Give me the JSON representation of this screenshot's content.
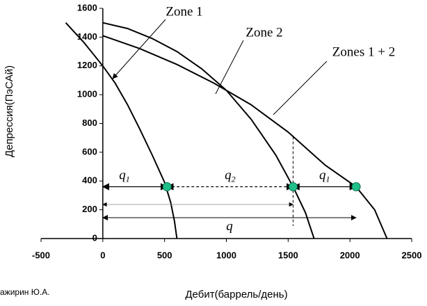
{
  "chart_data": {
    "type": "line",
    "y_label": "Депрессия(ПэСАй)",
    "x_label": "Дебит(баррель/день)",
    "credit": "ажирин Ю.А.",
    "xlim": [
      -500,
      2500
    ],
    "xticks": [
      -500,
      0,
      500,
      1000,
      1500,
      2000,
      2500
    ],
    "ylim": [
      0,
      1600
    ],
    "yticks": [
      0,
      200,
      400,
      600,
      800,
      1000,
      1200,
      1400,
      1600
    ],
    "series": [
      {
        "name": "Zone 1",
        "color": "#000000",
        "x": [
          -300,
          -150,
          0,
          100,
          200,
          300,
          400,
          500,
          550,
          580,
          600
        ],
        "values": [
          1500,
          1360,
          1200,
          1080,
          930,
          760,
          580,
          390,
          250,
          120,
          0
        ]
      },
      {
        "name": "Zone 2",
        "color": "#000000",
        "x": [
          0,
          200,
          400,
          600,
          800,
          1000,
          1200,
          1400,
          1540,
          1640,
          1710
        ],
        "values": [
          1500,
          1460,
          1390,
          1300,
          1180,
          1030,
          830,
          580,
          360,
          180,
          0
        ]
      },
      {
        "name": "Zones 1 + 2",
        "color": "#000000",
        "x": [
          0,
          300,
          600,
          900,
          1200,
          1500,
          1800,
          2050,
          2200,
          2300
        ],
        "values": [
          1410,
          1320,
          1210,
          1080,
          930,
          740,
          510,
          360,
          200,
          0
        ]
      }
    ],
    "points": {
      "color": "#1fbf8a",
      "x": [
        520,
        1540,
        2050
      ],
      "values": [
        360,
        360,
        360
      ]
    },
    "dimension_labels": [
      {
        "text": "q",
        "sub": "1"
      },
      {
        "text": "q",
        "sub": "2"
      },
      {
        "text": "q",
        "sub": "1"
      },
      {
        "text": "q"
      }
    ]
  }
}
